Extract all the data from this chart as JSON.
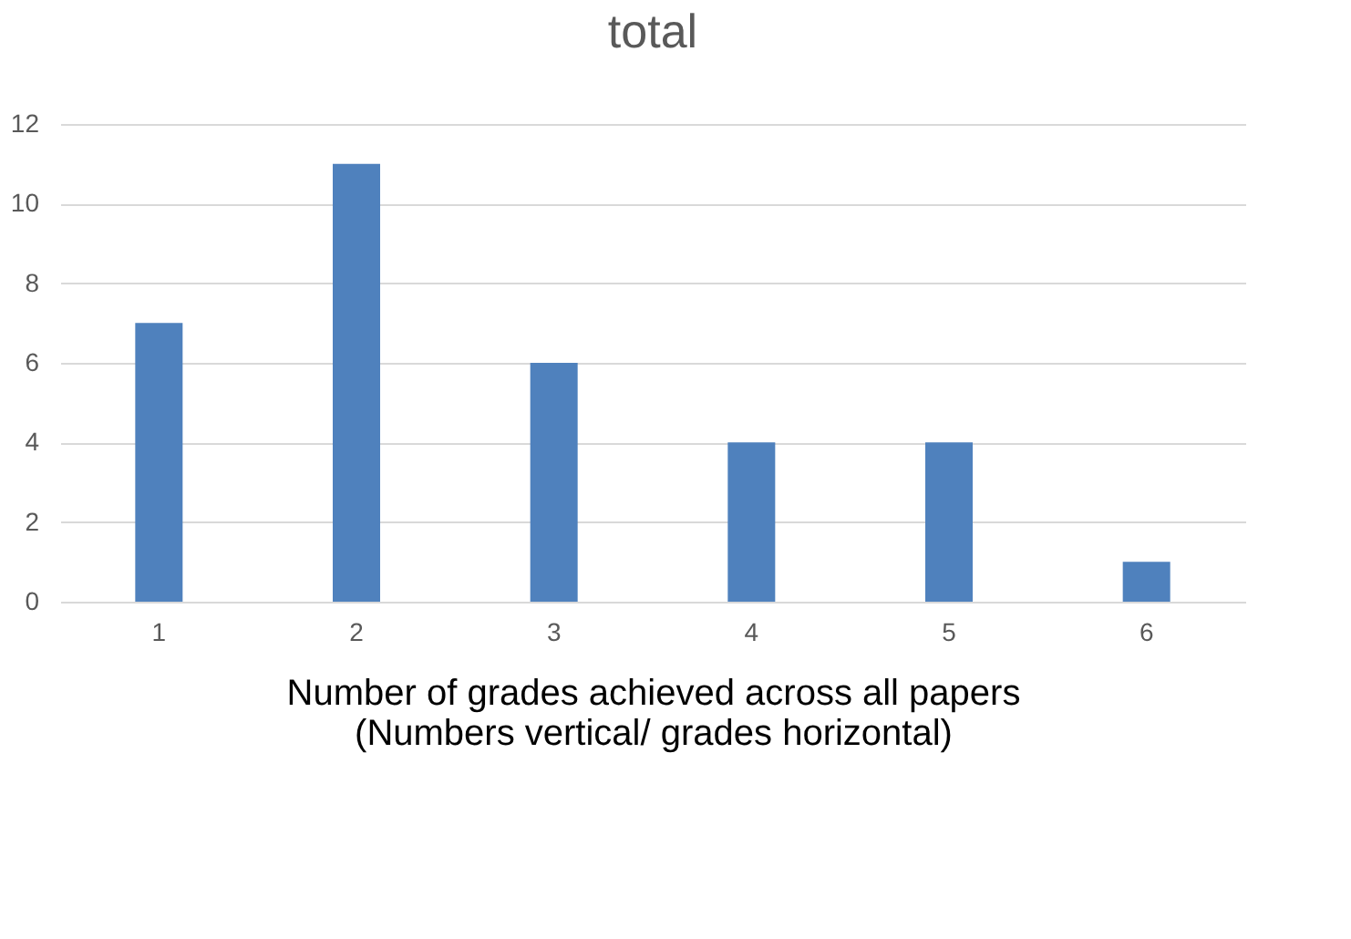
{
  "chart_data": {
    "type": "bar",
    "title": "total",
    "xlabel": "Number of grades achieved across all papers",
    "annotations": [
      "(Numbers vertical/ grades horizontal)"
    ],
    "categories": [
      "1",
      "2",
      "3",
      "4",
      "5",
      "6"
    ],
    "values": [
      7,
      11,
      6,
      4,
      4,
      1
    ],
    "color": "#4f81bd",
    "ylim": [
      0,
      12
    ],
    "yticks": [
      0,
      2,
      4,
      6,
      8,
      10,
      12
    ],
    "grid": "y"
  }
}
